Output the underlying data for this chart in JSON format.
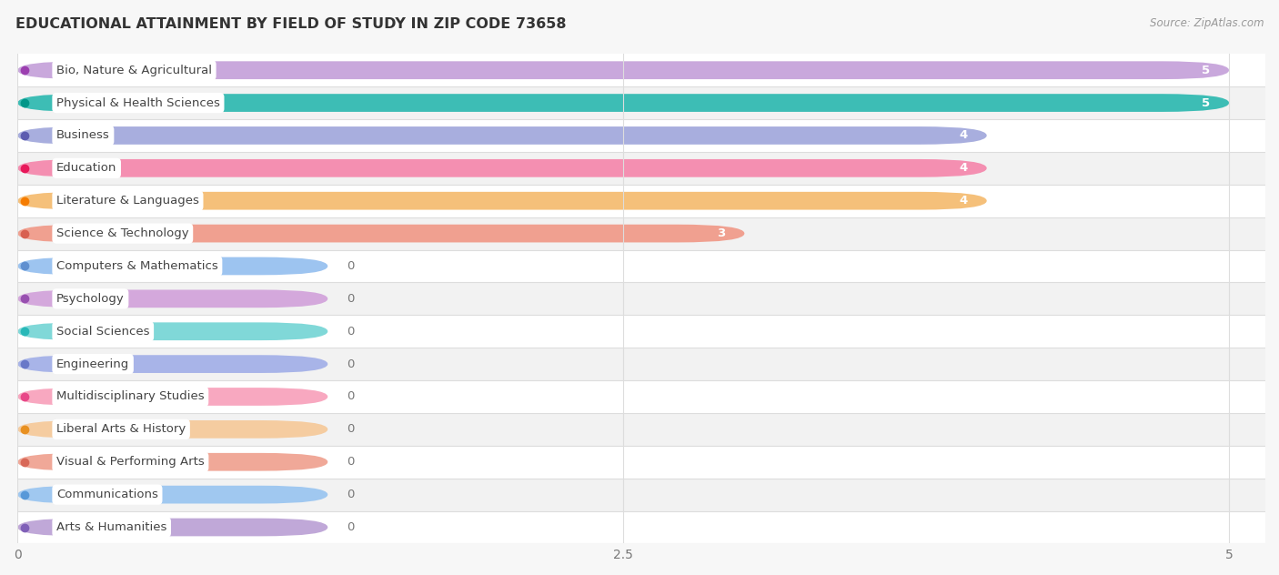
{
  "title": "EDUCATIONAL ATTAINMENT BY FIELD OF STUDY IN ZIP CODE 73658",
  "source": "Source: ZipAtlas.com",
  "categories": [
    "Bio, Nature & Agricultural",
    "Physical & Health Sciences",
    "Business",
    "Education",
    "Literature & Languages",
    "Science & Technology",
    "Computers & Mathematics",
    "Psychology",
    "Social Sciences",
    "Engineering",
    "Multidisciplinary Studies",
    "Liberal Arts & History",
    "Visual & Performing Arts",
    "Communications",
    "Arts & Humanities"
  ],
  "values": [
    5,
    5,
    4,
    4,
    4,
    3,
    0,
    0,
    0,
    0,
    0,
    0,
    0,
    0,
    0
  ],
  "bar_colors": [
    "#c9a8dc",
    "#3dbdb5",
    "#a8aede",
    "#f48fb1",
    "#f5c07a",
    "#f0a090",
    "#9dc4f0",
    "#d4a8dc",
    "#80d8d8",
    "#a8b4e8",
    "#f8a8c0",
    "#f5cca0",
    "#f0a898",
    "#a0c8f0",
    "#c0a8d8"
  ],
  "label_dot_colors": [
    "#9c3fb0",
    "#009688",
    "#5c5cb0",
    "#e8185a",
    "#f57c00",
    "#d86050",
    "#6090d0",
    "#9850b0",
    "#28b8b8",
    "#6878c8",
    "#e84888",
    "#e89020",
    "#d86858",
    "#5898d8",
    "#8060b8"
  ],
  "zero_bar_width": 1.28,
  "xlim": [
    0,
    5.15
  ],
  "xticks": [
    0,
    2.5,
    5
  ],
  "background_color": "#f7f7f7",
  "row_bg_color": "#ffffff",
  "alt_row_bg_color": "#f2f2f2",
  "title_fontsize": 11.5,
  "label_fontsize": 9.5,
  "value_fontsize": 9.5
}
